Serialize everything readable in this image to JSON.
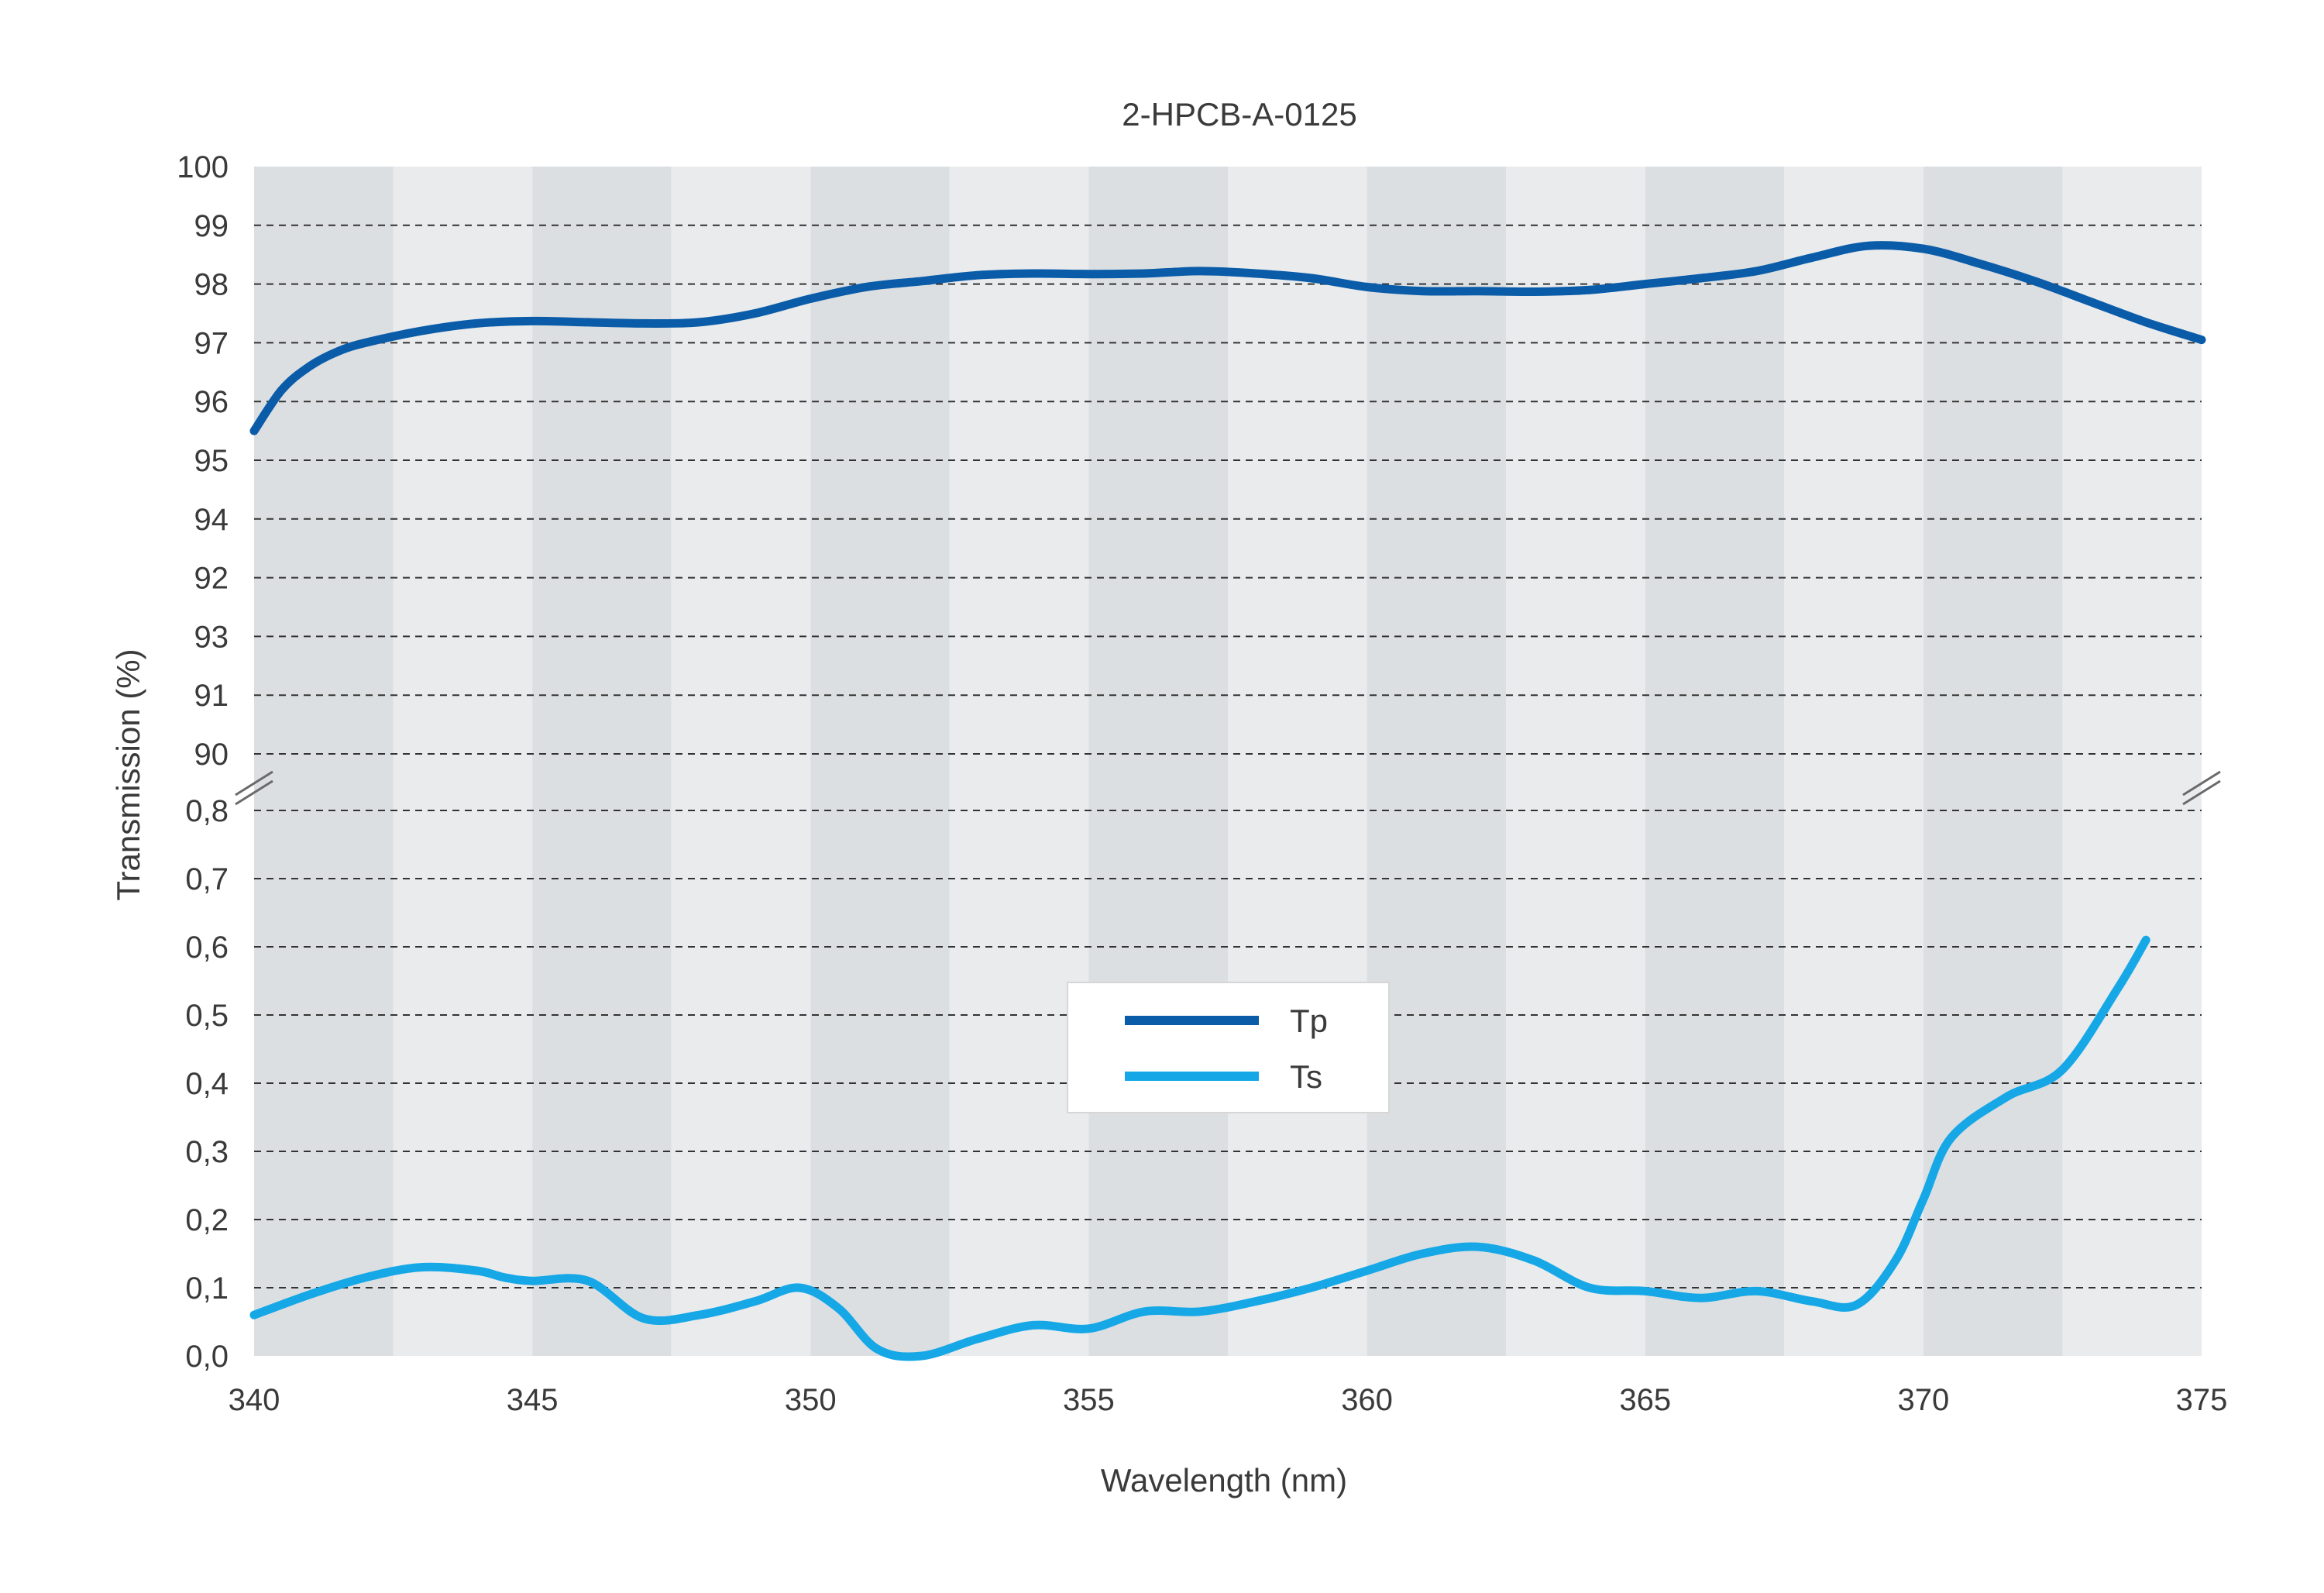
{
  "chart_data": {
    "type": "line",
    "title": "2-HPCB-A-0125",
    "xlabel": "Wavelength (nm)",
    "ylabel": "Transmission (%)",
    "xlim": [
      340,
      375
    ],
    "x_ticks": [
      "340",
      "345",
      "350",
      "355",
      "360",
      "365",
      "370",
      "375"
    ],
    "y_scale": "broken",
    "upper_panel": {
      "ylim": [
        90,
        100
      ],
      "tick_labels": [
        "100",
        "99",
        "98",
        "97",
        "96",
        "95",
        "94",
        "92",
        "93",
        "91",
        "90"
      ]
    },
    "lower_panel": {
      "ylim": [
        0,
        0.8
      ],
      "tick_labels": [
        "0,8",
        "0,7",
        "0,6",
        "0,5",
        "0,4",
        "0,3",
        "0,2",
        "0,1",
        "0,0"
      ]
    },
    "grid": true,
    "background_bands": "alternating vertical stripes every 2.5 nm",
    "legend_position": "center",
    "series": [
      {
        "name": "Tp",
        "color": "#0a5ca8",
        "panel": "upper",
        "x": [
          340,
          340.5,
          341,
          341.5,
          342,
          343,
          344,
          345,
          346,
          347,
          348,
          349,
          350,
          351,
          352,
          353,
          354,
          355,
          356,
          357,
          358,
          359,
          360,
          361,
          362,
          363,
          364,
          365,
          366,
          367,
          368,
          369,
          370,
          371,
          372,
          373,
          374,
          375
        ],
        "y": [
          95.5,
          96.2,
          96.6,
          96.85,
          97.0,
          97.2,
          97.33,
          97.37,
          97.35,
          97.33,
          97.35,
          97.5,
          97.75,
          97.95,
          98.05,
          98.15,
          98.18,
          98.17,
          98.18,
          98.22,
          98.18,
          98.1,
          97.95,
          97.88,
          97.88,
          97.87,
          97.9,
          98.0,
          98.1,
          98.22,
          98.45,
          98.65,
          98.6,
          98.35,
          98.05,
          97.7,
          97.35,
          97.05
        ]
      },
      {
        "name": "Ts",
        "color": "#16a8e6",
        "panel": "lower",
        "x": [
          340,
          341,
          342,
          343,
          344,
          344.5,
          345,
          346,
          347,
          348,
          349,
          349.8,
          350.5,
          351.2,
          352,
          353,
          354,
          355,
          356,
          357,
          358,
          359,
          360,
          361,
          362,
          363,
          364,
          365,
          366,
          367,
          368,
          368.8,
          369.5,
          370,
          370.5,
          371.5,
          372.5,
          373.5,
          374
        ],
        "y": [
          0.06,
          0.09,
          0.115,
          0.13,
          0.125,
          0.115,
          0.11,
          0.11,
          0.055,
          0.06,
          0.08,
          0.1,
          0.07,
          0.01,
          0.0,
          0.025,
          0.045,
          0.04,
          0.065,
          0.065,
          0.08,
          0.1,
          0.125,
          0.15,
          0.16,
          0.14,
          0.1,
          0.095,
          0.085,
          0.095,
          0.08,
          0.075,
          0.14,
          0.23,
          0.32,
          0.38,
          0.42,
          0.54,
          0.61
        ]
      }
    ]
  }
}
